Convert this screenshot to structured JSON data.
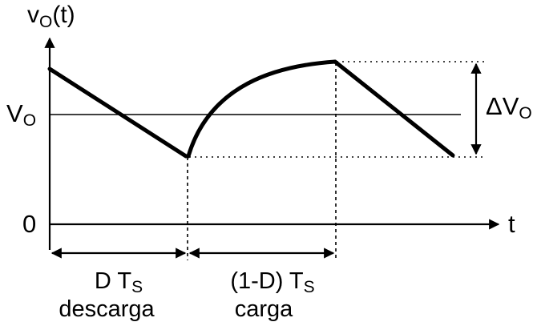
{
  "y_axis": {
    "label_main": "v",
    "label_sub": "O",
    "label_suffix": "(t)"
  },
  "x_axis": {
    "label": "t"
  },
  "levels": {
    "average_main": "V",
    "average_sub": "O",
    "zero": "0"
  },
  "ripple": {
    "label_main": "ΔV",
    "label_sub": "O"
  },
  "intervals": [
    {
      "top_main": "D T",
      "top_sub": "S",
      "bottom": "descarga"
    },
    {
      "top_main": "(1-D) T",
      "top_sub": "S",
      "bottom": "carga"
    }
  ],
  "colors": {
    "ink": "#000000",
    "background": "#ffffff"
  }
}
